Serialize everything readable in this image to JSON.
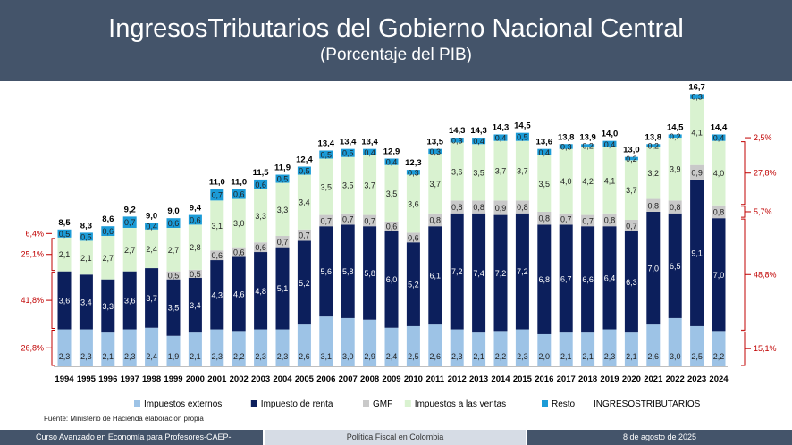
{
  "header": {
    "title": "IngresosTributarios del Gobierno Nacional Central",
    "subtitle": "(Porcentaje del PIB)"
  },
  "chart_data": {
    "type": "bar",
    "stacked": true,
    "categories": [
      "1994",
      "1995",
      "1996",
      "1997",
      "1998",
      "1999",
      "2000",
      "2001",
      "2002",
      "2003",
      "2004",
      "2005",
      "2006",
      "2007",
      "2008",
      "2009",
      "2010",
      "2011",
      "2012",
      "2013",
      "2014",
      "2015",
      "2016",
      "2017",
      "2018",
      "2019",
      "2020",
      "2021",
      "2022",
      "2023",
      "2024"
    ],
    "series": [
      {
        "name": "Impuestos externos",
        "color": "#9dc3e6",
        "values": [
          2.3,
          2.3,
          2.1,
          2.3,
          2.4,
          1.9,
          2.1,
          2.3,
          2.2,
          2.3,
          2.3,
          2.6,
          3.1,
          3.0,
          2.9,
          2.4,
          2.5,
          2.6,
          2.3,
          2.1,
          2.2,
          2.3,
          2.0,
          2.1,
          2.1,
          2.3,
          2.1,
          2.6,
          3.0,
          2.5,
          2.2
        ]
      },
      {
        "name": "Impuesto de renta",
        "color": "#0c1f5c",
        "values": [
          3.6,
          3.4,
          3.3,
          3.6,
          3.7,
          3.5,
          3.4,
          4.3,
          4.6,
          4.8,
          5.1,
          5.2,
          5.6,
          5.8,
          5.8,
          6.0,
          5.2,
          6.1,
          7.2,
          7.4,
          7.2,
          7.2,
          6.8,
          6.7,
          6.6,
          6.4,
          6.3,
          7.0,
          6.5,
          9.1,
          7.0
        ]
      },
      {
        "name": "GMF",
        "color": "#c9c9c9",
        "values": [
          0,
          0,
          0,
          0,
          0,
          0.5,
          0.5,
          0.6,
          0.6,
          0.6,
          0.7,
          0.7,
          0.7,
          0.7,
          0.7,
          0.6,
          0.6,
          0.8,
          0.8,
          0.8,
          0.9,
          0.8,
          0.8,
          0.7,
          0.7,
          0.8,
          0.7,
          0.8,
          0.8,
          0.9,
          0.8
        ]
      },
      {
        "name": "Impuestos a las ventas",
        "color": "#d9f2d0",
        "values": [
          2.1,
          2.1,
          2.7,
          2.7,
          2.4,
          2.7,
          2.8,
          3.1,
          3.0,
          3.3,
          3.3,
          3.4,
          3.5,
          3.5,
          3.7,
          3.5,
          3.6,
          3.7,
          3.6,
          3.5,
          3.7,
          3.7,
          3.5,
          4.0,
          4.2,
          4.1,
          3.7,
          3.2,
          3.9,
          4.1,
          4.0
        ]
      },
      {
        "name": "Resto",
        "color": "#1b9bd7",
        "values": [
          0.5,
          0.5,
          0.6,
          0.7,
          0.4,
          0.6,
          0.6,
          0.7,
          0.6,
          0.6,
          0.5,
          0.5,
          0.5,
          0.5,
          0.4,
          0.4,
          0.3,
          0.3,
          0.3,
          0.4,
          0.4,
          0.5,
          0.4,
          0.3,
          0.2,
          0.4,
          0.2,
          0.2,
          0.2,
          0.3,
          0.4
        ]
      }
    ],
    "totals": {
      "name": "INGRESOSTRIBUTARIOS",
      "values": [
        "8,5",
        "8,3",
        "8,6",
        "9,2",
        "9,0",
        "9,0",
        "9,4",
        "11,0",
        "11,0",
        "11,5",
        "11,9",
        "12,4",
        "13,4",
        "13,4",
        "13,4",
        "12,9",
        "12,3",
        "13,5",
        "14,3",
        "14,3",
        "14,3",
        "14,5",
        "13,6",
        "13,8",
        "13,9",
        "14,0",
        "13,0",
        "13,8",
        "14,5",
        "16,7",
        "14,4"
      ]
    },
    "shares_1994": {
      "values": [
        "26,8%",
        "41,8%",
        "25,1%",
        "6,4%"
      ]
    },
    "shares_2024": {
      "values": [
        "15,1%",
        "48,8%",
        "5,7%",
        "27,8%",
        "2,5%"
      ]
    },
    "ylim": [
      0,
      17.2
    ],
    "grid": false,
    "legend_position": "bottom"
  },
  "source": "Fuente: Ministerio de Hacienda elaboración propia",
  "footer": {
    "left": "Curso Avanzado en Economía para Profesores-CAEP-",
    "center": "Política Fiscal en Colombia",
    "right": "8 de agosto de 2025"
  }
}
